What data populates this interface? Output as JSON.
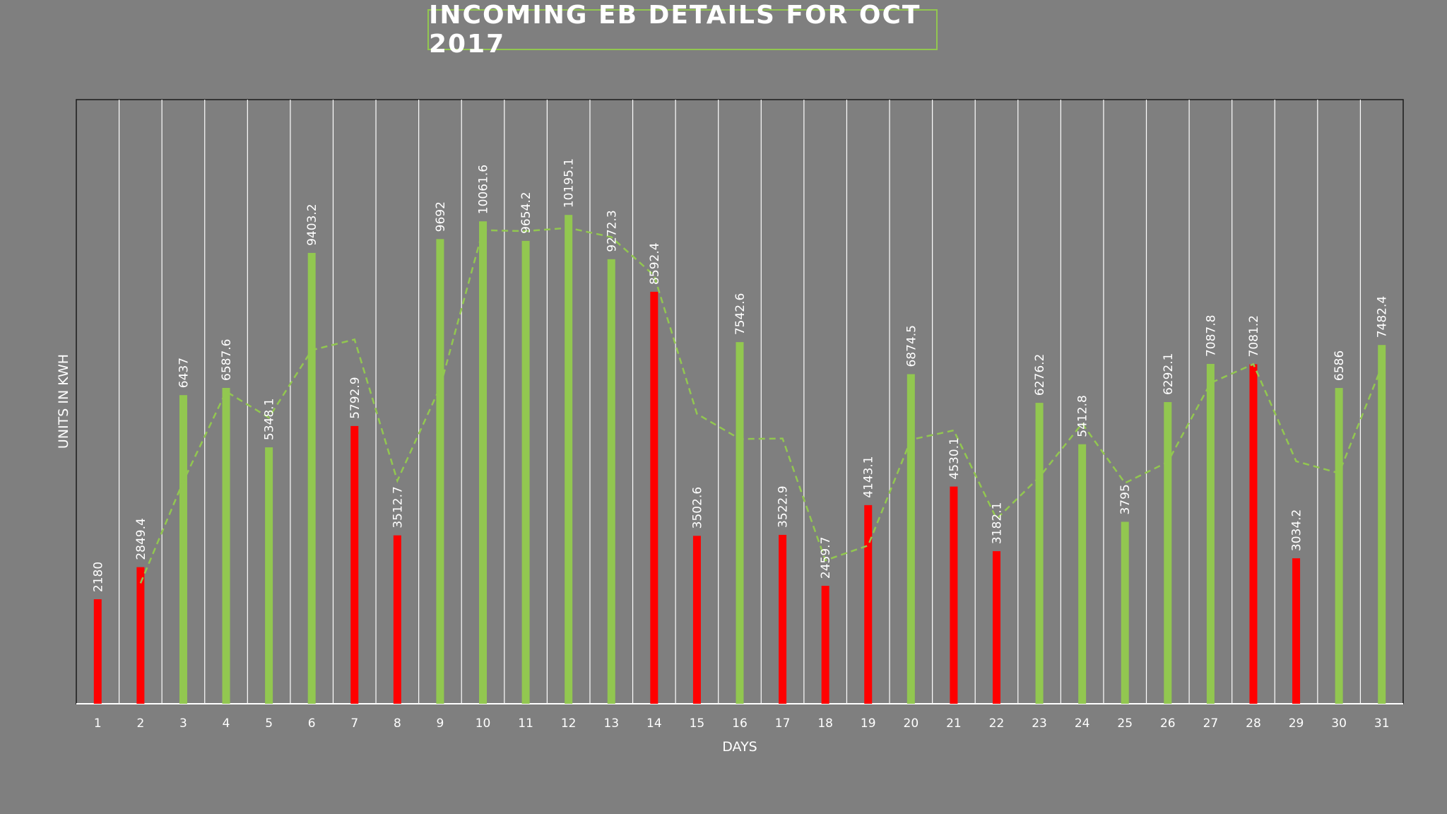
{
  "chart_data": {
    "type": "bar",
    "title": "INCOMING EB DETAILS FOR OCT 2017",
    "xlabel": "DAYS",
    "ylabel": "UNITS IN KWH",
    "ylim": [
      0,
      12600
    ],
    "grid": "vertical",
    "categories": [
      "1",
      "2",
      "3",
      "4",
      "5",
      "6",
      "7",
      "8",
      "9",
      "10",
      "11",
      "12",
      "13",
      "14",
      "15",
      "16",
      "17",
      "18",
      "19",
      "20",
      "21",
      "22",
      "23",
      "24",
      "25",
      "26",
      "27",
      "28",
      "29",
      "30",
      "31"
    ],
    "values": [
      2180,
      2849.4,
      6437,
      6587.6,
      5348.1,
      9403.2,
      5792.9,
      3512.7,
      9692,
      10061.6,
      9654.2,
      10195.1,
      9272.3,
      8592.4,
      3502.6,
      7542.6,
      3522.9,
      2459.7,
      4143.1,
      6874.5,
      4530.1,
      3182.1,
      6276.2,
      5412.8,
      3795,
      6292.1,
      7087.8,
      7081.2,
      3034.2,
      6586,
      7482.4
    ],
    "labels": [
      "2180",
      "2849.4",
      "6437",
      "6587.6",
      "5348.1",
      "9403.2",
      "5792.9",
      "3512.7",
      "9692",
      "10061.6",
      "9654.2",
      "10195.1",
      "9272.3",
      "8592.4",
      "3502.6",
      "7542.6",
      "3522.9",
      "2459.7",
      "4143.1",
      "6874.5",
      "4530.1",
      "3182.1",
      "6276.2",
      "5412.8",
      "3795",
      "6292.1",
      "7087.8",
      "7081.2",
      "3034.2",
      "6586",
      "7482.4"
    ],
    "bar_colors": [
      "#ff0000",
      "#ff0000",
      "#92c750",
      "#92c750",
      "#92c750",
      "#92c750",
      "#ff0000",
      "#ff0000",
      "#92c750",
      "#92c750",
      "#92c750",
      "#92c750",
      "#92c750",
      "#ff0000",
      "#ff0000",
      "#92c750",
      "#ff0000",
      "#ff0000",
      "#ff0000",
      "#92c750",
      "#ff0000",
      "#ff0000",
      "#92c750",
      "#92c750",
      "#92c750",
      "#92c750",
      "#92c750",
      "#ff0000",
      "#ff0000",
      "#92c750",
      "#92c750"
    ],
    "trendline": {
      "type": "moving-average",
      "period": 2,
      "style": "dashed",
      "color": "#92c750"
    },
    "colors": {
      "background": "#7f7f7f",
      "green": "#92c750",
      "red": "#ff0000",
      "grid": "#ffffff",
      "text": "#ffffff"
    }
  }
}
